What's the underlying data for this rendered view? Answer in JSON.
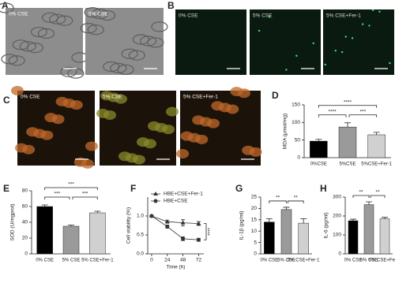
{
  "panels": [
    {
      "letter": "A",
      "images": [
        "0% CSE",
        "5% CSE"
      ]
    },
    {
      "letter": "B",
      "images": [
        "0% CSE",
        "5% CSE",
        "5% CSE+Fer-1"
      ]
    },
    {
      "letter": "C",
      "images": [
        "0% CSE",
        "5% CSE",
        "5% CSE+Fer-1"
      ]
    }
  ],
  "chart_data": [
    {
      "type": "bar",
      "panel_label": "D",
      "y_label": "MDA (μmol/mg)",
      "categories": [
        "0%CSE",
        "5%CSE",
        "5%CSE+Fer-1"
      ],
      "values": [
        47,
        87,
        65
      ],
      "errors": [
        5,
        12,
        7
      ],
      "colors": [
        "#000000",
        "#9a9a9a",
        "#d0d0d0"
      ],
      "ylim": [
        0,
        150
      ],
      "yticks": [
        0,
        50,
        100,
        150
      ],
      "annotations": [
        "****",
        "****",
        "***"
      ]
    },
    {
      "type": "bar",
      "panel_label": "E",
      "y_label": "SOD (U/mgprot)",
      "categories": [
        "0% CSE",
        "5% CSE",
        "5% CSE+Fer-1"
      ],
      "values": [
        60,
        35,
        52
      ],
      "errors": [
        2,
        1.5,
        2
      ],
      "colors": [
        "#000000",
        "#9a9a9a",
        "#d0d0d0"
      ],
      "ylim": [
        0,
        80
      ],
      "yticks": [
        0,
        20,
        40,
        60,
        80
      ],
      "annotations": [
        "***",
        "***",
        "***"
      ]
    },
    {
      "type": "line",
      "panel_label": "F",
      "y_label": "Cell viability (%)",
      "x_label": "Time (h)",
      "x": [
        0,
        24,
        48,
        72
      ],
      "xlim": [
        -6,
        80
      ],
      "xticks": [
        0,
        24,
        48,
        72
      ],
      "ylim": [
        0,
        1.5
      ],
      "yticks": [
        {
          "value": 0,
          "label": "0.0"
        },
        {
          "value": 0.5,
          "label": "0.5"
        },
        {
          "value": 1,
          "label": "1.0"
        }
      ],
      "series": [
        {
          "name": "HBE+CSE+Fer-1",
          "color": "#333333",
          "marker": "triangle",
          "values": [
            1.0,
            0.85,
            0.82,
            0.8
          ],
          "errors": [
            0.02,
            0.04,
            0.08,
            0.05
          ]
        },
        {
          "name": "HBE+CSE",
          "color": "#333333",
          "marker": "circle",
          "values": [
            1.0,
            0.72,
            0.4,
            0.37
          ],
          "errors": [
            0.02,
            0.04,
            0.05,
            0.04
          ]
        }
      ],
      "annotation": "****"
    },
    {
      "type": "bar",
      "panel_label": "G",
      "y_label": "IL-1β (pg/ml)",
      "categories": [
        "0% CSE",
        "5% CSE",
        "5% CSE+Fer-1"
      ],
      "values": [
        14,
        19.5,
        13.5
      ],
      "errors": [
        1.5,
        1,
        2
      ],
      "colors": [
        "#000000",
        "#9a9a9a",
        "#d0d0d0"
      ],
      "ylim": [
        0,
        25
      ],
      "yticks": [
        0,
        5,
        10,
        15,
        20,
        25
      ],
      "annotations": [
        "**",
        "**"
      ]
    },
    {
      "type": "bar",
      "panel_label": "H",
      "y_label": "IL-6 (pg/ml)",
      "categories": [
        "0% CSE",
        "5% CSE",
        "5% CSE+Fer-1"
      ],
      "values": [
        175,
        260,
        185
      ],
      "errors": [
        8,
        15,
        8
      ],
      "colors": [
        "#000000",
        "#9a9a9a",
        "#d0d0d0"
      ],
      "ylim": [
        0,
        300
      ],
      "yticks": [
        0,
        100,
        200,
        300
      ],
      "annotations": [
        "**",
        "**"
      ]
    }
  ]
}
